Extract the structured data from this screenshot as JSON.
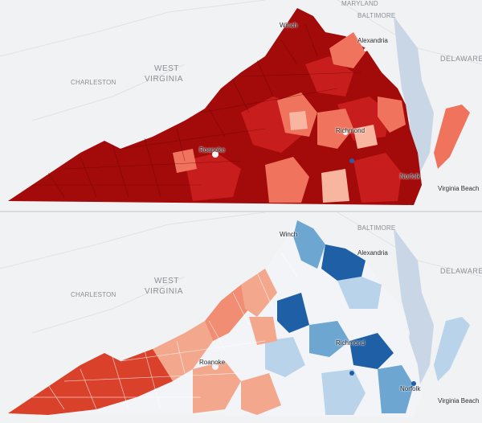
{
  "maps": [
    {
      "id": "top",
      "labels": {
        "maryland": "MARYLAND",
        "baltimore": "BALTIMORE",
        "winchester": "Winch",
        "alexandria": "Alexandria",
        "delaware": "DELAWARE",
        "charleston": "CHARLESTON",
        "west": "WEST",
        "virginia": "VIRGINIA",
        "richmond": "Richmond",
        "roanoke": "Roanoke",
        "norfolk": "Norfolk",
        "virginia_beach": "Virginia Beach"
      },
      "colors": {
        "dark": "#a30a0a",
        "mid": "#c81d1d",
        "light": "#f0735d",
        "pale": "#f8b6a1",
        "water": "#c9d6e6"
      }
    },
    {
      "id": "bottom",
      "labels": {
        "maryland": "",
        "baltimore": "BALTIMORE",
        "winchester": "Winch",
        "alexandria": "Alexandria",
        "delaware": "DELAWARE",
        "charleston": "CHARLESTON",
        "west": "WEST",
        "virginia": "VIRGINIA",
        "richmond": "Richmond",
        "roanoke": "Roanoke",
        "norfolk": "Norfolk",
        "virginia_beach": "Virginia Beach"
      },
      "colors": {
        "red_dark": "#d9412b",
        "red_light": "#f3a88d",
        "white": "#f3f4f7",
        "blue_light": "#b9d3ea",
        "blue_mid": "#6ea6d2",
        "blue_dark": "#1f5fa6",
        "water": "#c9d6e6"
      }
    }
  ]
}
